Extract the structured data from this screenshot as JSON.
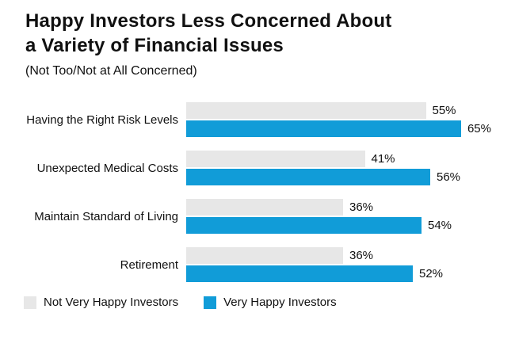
{
  "title_lines": [
    "Happy Investors Less Concerned About",
    "a Variety of Financial Issues"
  ],
  "subtitle": "(Not Too/Not at All Concerned)",
  "colors": {
    "gray_series": "#e7e7e7",
    "blue_series": "#119cd8"
  },
  "chart_data": {
    "type": "bar",
    "orientation": "horizontal",
    "title": "Happy Investors Less Concerned About a Variety of Financial Issues",
    "subtitle": "(Not Too/Not at All Concerned)",
    "categories": [
      "Having the Right Risk Levels",
      "Unexpected Medical Costs",
      "Maintain Standard of Living",
      "Retirement"
    ],
    "series": [
      {
        "name": "Not Very Happy Investors",
        "color": "#e7e7e7",
        "values": [
          55,
          41,
          36,
          36
        ]
      },
      {
        "name": "Very Happy Investors",
        "color": "#119cd8",
        "values": [
          65,
          56,
          54,
          52
        ]
      }
    ],
    "value_suffix": "%",
    "xlim": [
      0,
      70
    ],
    "grid": false,
    "legend_position": "bottom"
  }
}
